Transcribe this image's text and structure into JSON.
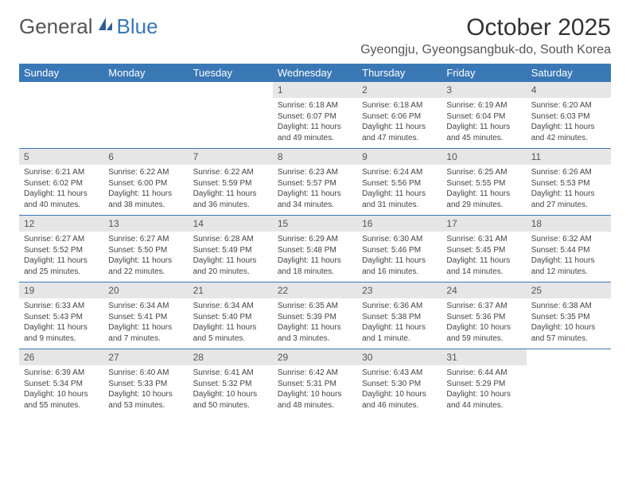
{
  "brand": {
    "word_a": "General",
    "word_b": "Blue"
  },
  "title": "October 2025",
  "location": "Gyeongju, Gyeongsangbuk-do, South Korea",
  "colors": {
    "accent": "#3a78b5",
    "daynum_bg": "#e6e6e6",
    "text": "#333333",
    "muted": "#555555",
    "background": "#ffffff"
  },
  "fonts": {
    "title_size": 30,
    "location_size": 16,
    "header_size": 13,
    "daynum_size": 12,
    "detail_size": 10
  },
  "layout": {
    "columns": 7,
    "rows": 5
  },
  "day_headers": [
    "Sunday",
    "Monday",
    "Tuesday",
    "Wednesday",
    "Thursday",
    "Friday",
    "Saturday"
  ],
  "weeks": [
    [
      null,
      null,
      null,
      {
        "n": "1",
        "sr": "Sunrise: 6:18 AM",
        "ss": "Sunset: 6:07 PM",
        "d1": "Daylight: 11 hours",
        "d2": "and 49 minutes."
      },
      {
        "n": "2",
        "sr": "Sunrise: 6:18 AM",
        "ss": "Sunset: 6:06 PM",
        "d1": "Daylight: 11 hours",
        "d2": "and 47 minutes."
      },
      {
        "n": "3",
        "sr": "Sunrise: 6:19 AM",
        "ss": "Sunset: 6:04 PM",
        "d1": "Daylight: 11 hours",
        "d2": "and 45 minutes."
      },
      {
        "n": "4",
        "sr": "Sunrise: 6:20 AM",
        "ss": "Sunset: 6:03 PM",
        "d1": "Daylight: 11 hours",
        "d2": "and 42 minutes."
      }
    ],
    [
      {
        "n": "5",
        "sr": "Sunrise: 6:21 AM",
        "ss": "Sunset: 6:02 PM",
        "d1": "Daylight: 11 hours",
        "d2": "and 40 minutes."
      },
      {
        "n": "6",
        "sr": "Sunrise: 6:22 AM",
        "ss": "Sunset: 6:00 PM",
        "d1": "Daylight: 11 hours",
        "d2": "and 38 minutes."
      },
      {
        "n": "7",
        "sr": "Sunrise: 6:22 AM",
        "ss": "Sunset: 5:59 PM",
        "d1": "Daylight: 11 hours",
        "d2": "and 36 minutes."
      },
      {
        "n": "8",
        "sr": "Sunrise: 6:23 AM",
        "ss": "Sunset: 5:57 PM",
        "d1": "Daylight: 11 hours",
        "d2": "and 34 minutes."
      },
      {
        "n": "9",
        "sr": "Sunrise: 6:24 AM",
        "ss": "Sunset: 5:56 PM",
        "d1": "Daylight: 11 hours",
        "d2": "and 31 minutes."
      },
      {
        "n": "10",
        "sr": "Sunrise: 6:25 AM",
        "ss": "Sunset: 5:55 PM",
        "d1": "Daylight: 11 hours",
        "d2": "and 29 minutes."
      },
      {
        "n": "11",
        "sr": "Sunrise: 6:26 AM",
        "ss": "Sunset: 5:53 PM",
        "d1": "Daylight: 11 hours",
        "d2": "and 27 minutes."
      }
    ],
    [
      {
        "n": "12",
        "sr": "Sunrise: 6:27 AM",
        "ss": "Sunset: 5:52 PM",
        "d1": "Daylight: 11 hours",
        "d2": "and 25 minutes."
      },
      {
        "n": "13",
        "sr": "Sunrise: 6:27 AM",
        "ss": "Sunset: 5:50 PM",
        "d1": "Daylight: 11 hours",
        "d2": "and 22 minutes."
      },
      {
        "n": "14",
        "sr": "Sunrise: 6:28 AM",
        "ss": "Sunset: 5:49 PM",
        "d1": "Daylight: 11 hours",
        "d2": "and 20 minutes."
      },
      {
        "n": "15",
        "sr": "Sunrise: 6:29 AM",
        "ss": "Sunset: 5:48 PM",
        "d1": "Daylight: 11 hours",
        "d2": "and 18 minutes."
      },
      {
        "n": "16",
        "sr": "Sunrise: 6:30 AM",
        "ss": "Sunset: 5:46 PM",
        "d1": "Daylight: 11 hours",
        "d2": "and 16 minutes."
      },
      {
        "n": "17",
        "sr": "Sunrise: 6:31 AM",
        "ss": "Sunset: 5:45 PM",
        "d1": "Daylight: 11 hours",
        "d2": "and 14 minutes."
      },
      {
        "n": "18",
        "sr": "Sunrise: 6:32 AM",
        "ss": "Sunset: 5:44 PM",
        "d1": "Daylight: 11 hours",
        "d2": "and 12 minutes."
      }
    ],
    [
      {
        "n": "19",
        "sr": "Sunrise: 6:33 AM",
        "ss": "Sunset: 5:43 PM",
        "d1": "Daylight: 11 hours",
        "d2": "and 9 minutes."
      },
      {
        "n": "20",
        "sr": "Sunrise: 6:34 AM",
        "ss": "Sunset: 5:41 PM",
        "d1": "Daylight: 11 hours",
        "d2": "and 7 minutes."
      },
      {
        "n": "21",
        "sr": "Sunrise: 6:34 AM",
        "ss": "Sunset: 5:40 PM",
        "d1": "Daylight: 11 hours",
        "d2": "and 5 minutes."
      },
      {
        "n": "22",
        "sr": "Sunrise: 6:35 AM",
        "ss": "Sunset: 5:39 PM",
        "d1": "Daylight: 11 hours",
        "d2": "and 3 minutes."
      },
      {
        "n": "23",
        "sr": "Sunrise: 6:36 AM",
        "ss": "Sunset: 5:38 PM",
        "d1": "Daylight: 11 hours",
        "d2": "and 1 minute."
      },
      {
        "n": "24",
        "sr": "Sunrise: 6:37 AM",
        "ss": "Sunset: 5:36 PM",
        "d1": "Daylight: 10 hours",
        "d2": "and 59 minutes."
      },
      {
        "n": "25",
        "sr": "Sunrise: 6:38 AM",
        "ss": "Sunset: 5:35 PM",
        "d1": "Daylight: 10 hours",
        "d2": "and 57 minutes."
      }
    ],
    [
      {
        "n": "26",
        "sr": "Sunrise: 6:39 AM",
        "ss": "Sunset: 5:34 PM",
        "d1": "Daylight: 10 hours",
        "d2": "and 55 minutes."
      },
      {
        "n": "27",
        "sr": "Sunrise: 6:40 AM",
        "ss": "Sunset: 5:33 PM",
        "d1": "Daylight: 10 hours",
        "d2": "and 53 minutes."
      },
      {
        "n": "28",
        "sr": "Sunrise: 6:41 AM",
        "ss": "Sunset: 5:32 PM",
        "d1": "Daylight: 10 hours",
        "d2": "and 50 minutes."
      },
      {
        "n": "29",
        "sr": "Sunrise: 6:42 AM",
        "ss": "Sunset: 5:31 PM",
        "d1": "Daylight: 10 hours",
        "d2": "and 48 minutes."
      },
      {
        "n": "30",
        "sr": "Sunrise: 6:43 AM",
        "ss": "Sunset: 5:30 PM",
        "d1": "Daylight: 10 hours",
        "d2": "and 46 minutes."
      },
      {
        "n": "31",
        "sr": "Sunrise: 6:44 AM",
        "ss": "Sunset: 5:29 PM",
        "d1": "Daylight: 10 hours",
        "d2": "and 44 minutes."
      },
      null
    ]
  ]
}
